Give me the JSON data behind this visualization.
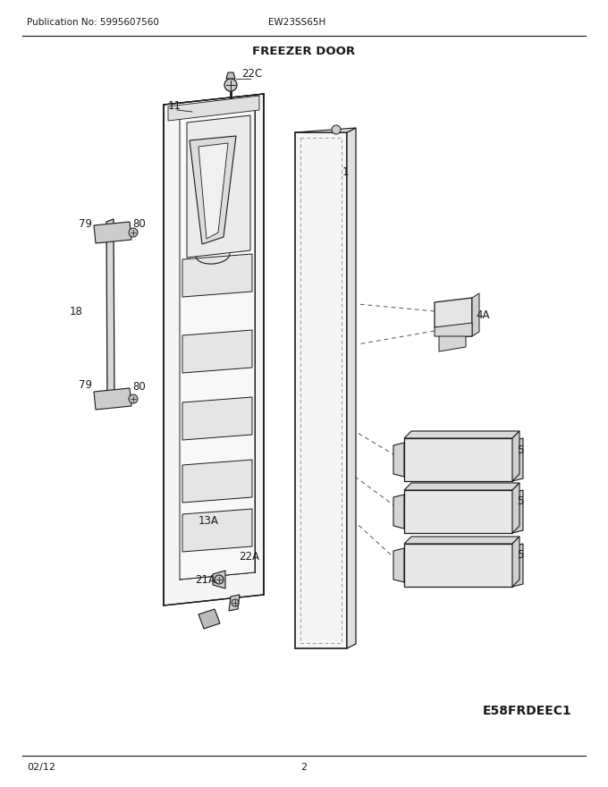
{
  "title": "FREEZER DOOR",
  "pub_no": "Publication No: 5995607560",
  "model": "EW23SS65H",
  "date": "02/12",
  "page": "2",
  "diagram_id": "E58FRDEEC1",
  "bg_color": "#ffffff",
  "lc": "#1a1a1a",
  "gray1": "#e8e8e8",
  "gray2": "#d0d0d0",
  "gray3": "#c0c0c0"
}
